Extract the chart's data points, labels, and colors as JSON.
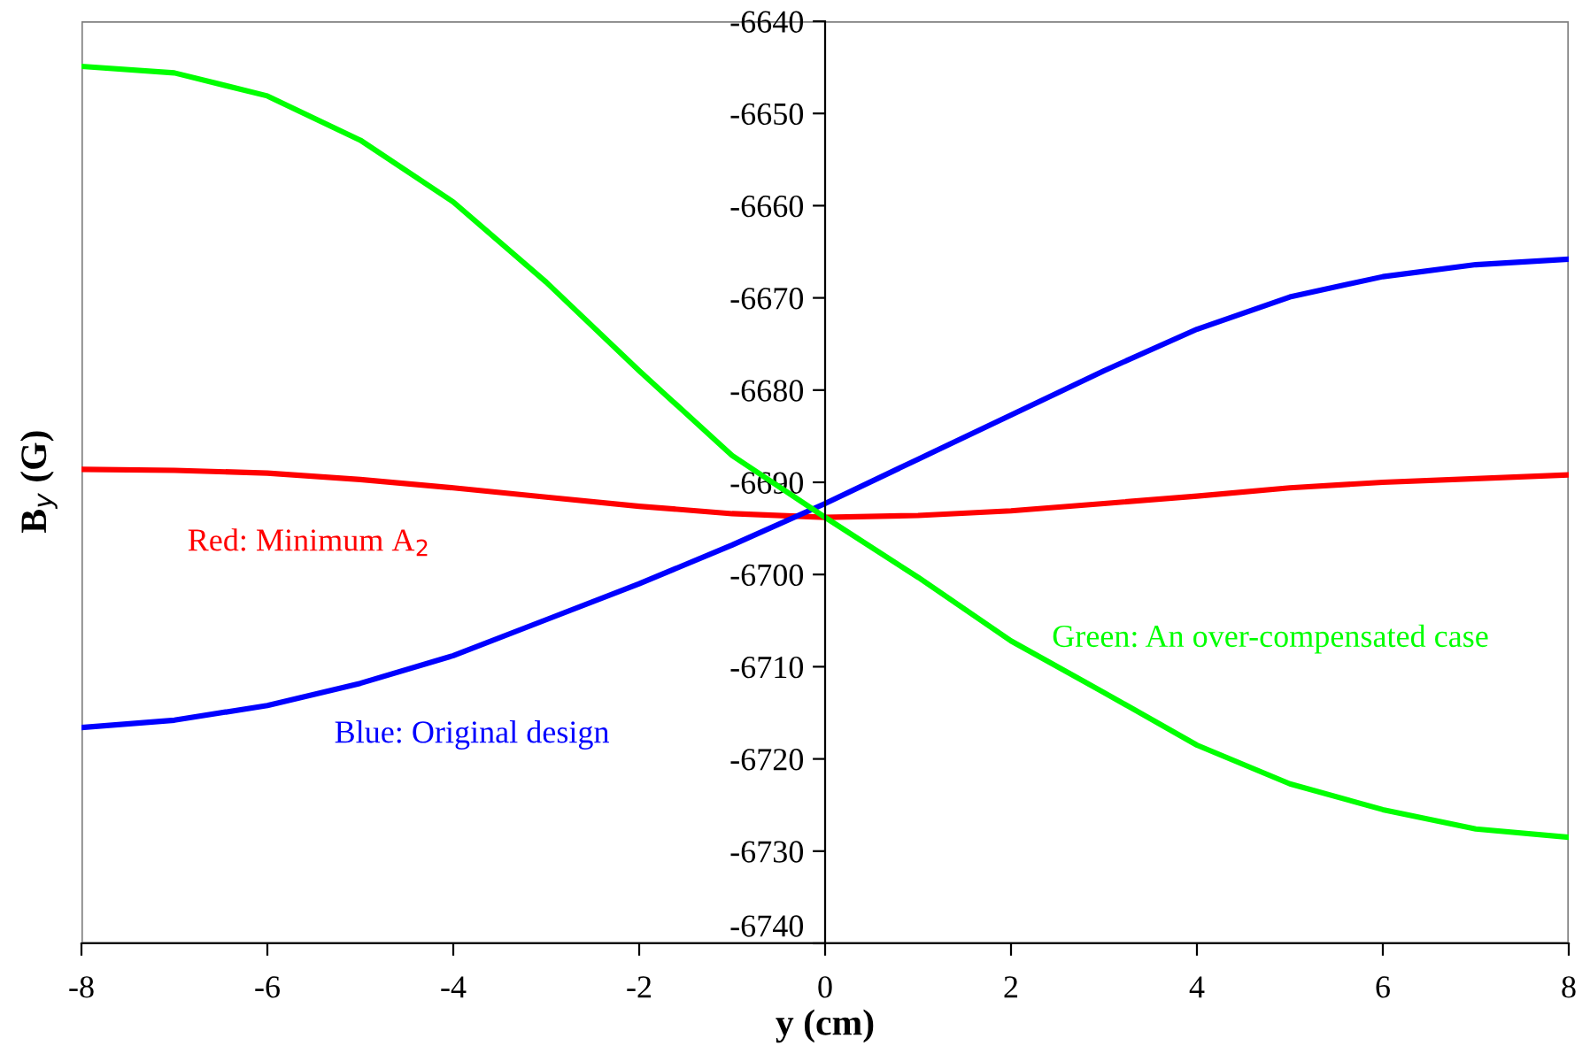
{
  "chart_data": {
    "type": "line",
    "xlabel": "y (cm)",
    "ylabel": "B$_{y}$ (G)",
    "x": [
      -8,
      -7,
      -6,
      -5,
      -4,
      -3,
      -2,
      -1,
      0,
      1,
      2,
      3,
      4,
      5,
      6,
      7,
      8
    ],
    "series": [
      {
        "name": "Red: Minimum A$_{2}$",
        "color": "#ff0000",
        "values": [
          -6688.6,
          -6688.7,
          -6689.0,
          -6689.7,
          -6690.6,
          -6691.6,
          -6692.6,
          -6693.4,
          -6693.8,
          -6693.6,
          -6693.1,
          -6692.3,
          -6691.5,
          -6690.6,
          -6690.0,
          -6689.6,
          -6689.2
        ]
      },
      {
        "name": "Blue: Original design",
        "color": "#0000ff",
        "values": [
          -6716.6,
          -6715.8,
          -6714.2,
          -6711.8,
          -6708.8,
          -6704.9,
          -6701.0,
          -6696.8,
          -6692.3,
          -6687.5,
          -6682.7,
          -6677.9,
          -6673.4,
          -6669.9,
          -6667.7,
          -6666.4,
          -6665.8
        ]
      },
      {
        "name": "Green: An over-compensated case",
        "color": "#00ff00",
        "values": [
          -6644.9,
          -6645.6,
          -6648.1,
          -6652.9,
          -6659.6,
          -6668.3,
          -6677.9,
          -6687.1,
          -6693.8,
          -6700.3,
          -6707.2,
          -6712.8,
          -6718.5,
          -6722.7,
          -6725.5,
          -6727.6,
          -6728.5
        ]
      }
    ],
    "xlim": [
      -8,
      8
    ],
    "xticks": [
      -8,
      -6,
      -4,
      -2,
      0,
      2,
      4,
      6,
      8
    ],
    "ylim": [
      -6740,
      -6640
    ],
    "yticks": [
      -6740,
      -6730,
      -6720,
      -6710,
      -6700,
      -6690,
      -6680,
      -6670,
      -6660,
      -6650,
      -6640
    ],
    "grid": false,
    "legend": false,
    "line_style": "solid"
  }
}
